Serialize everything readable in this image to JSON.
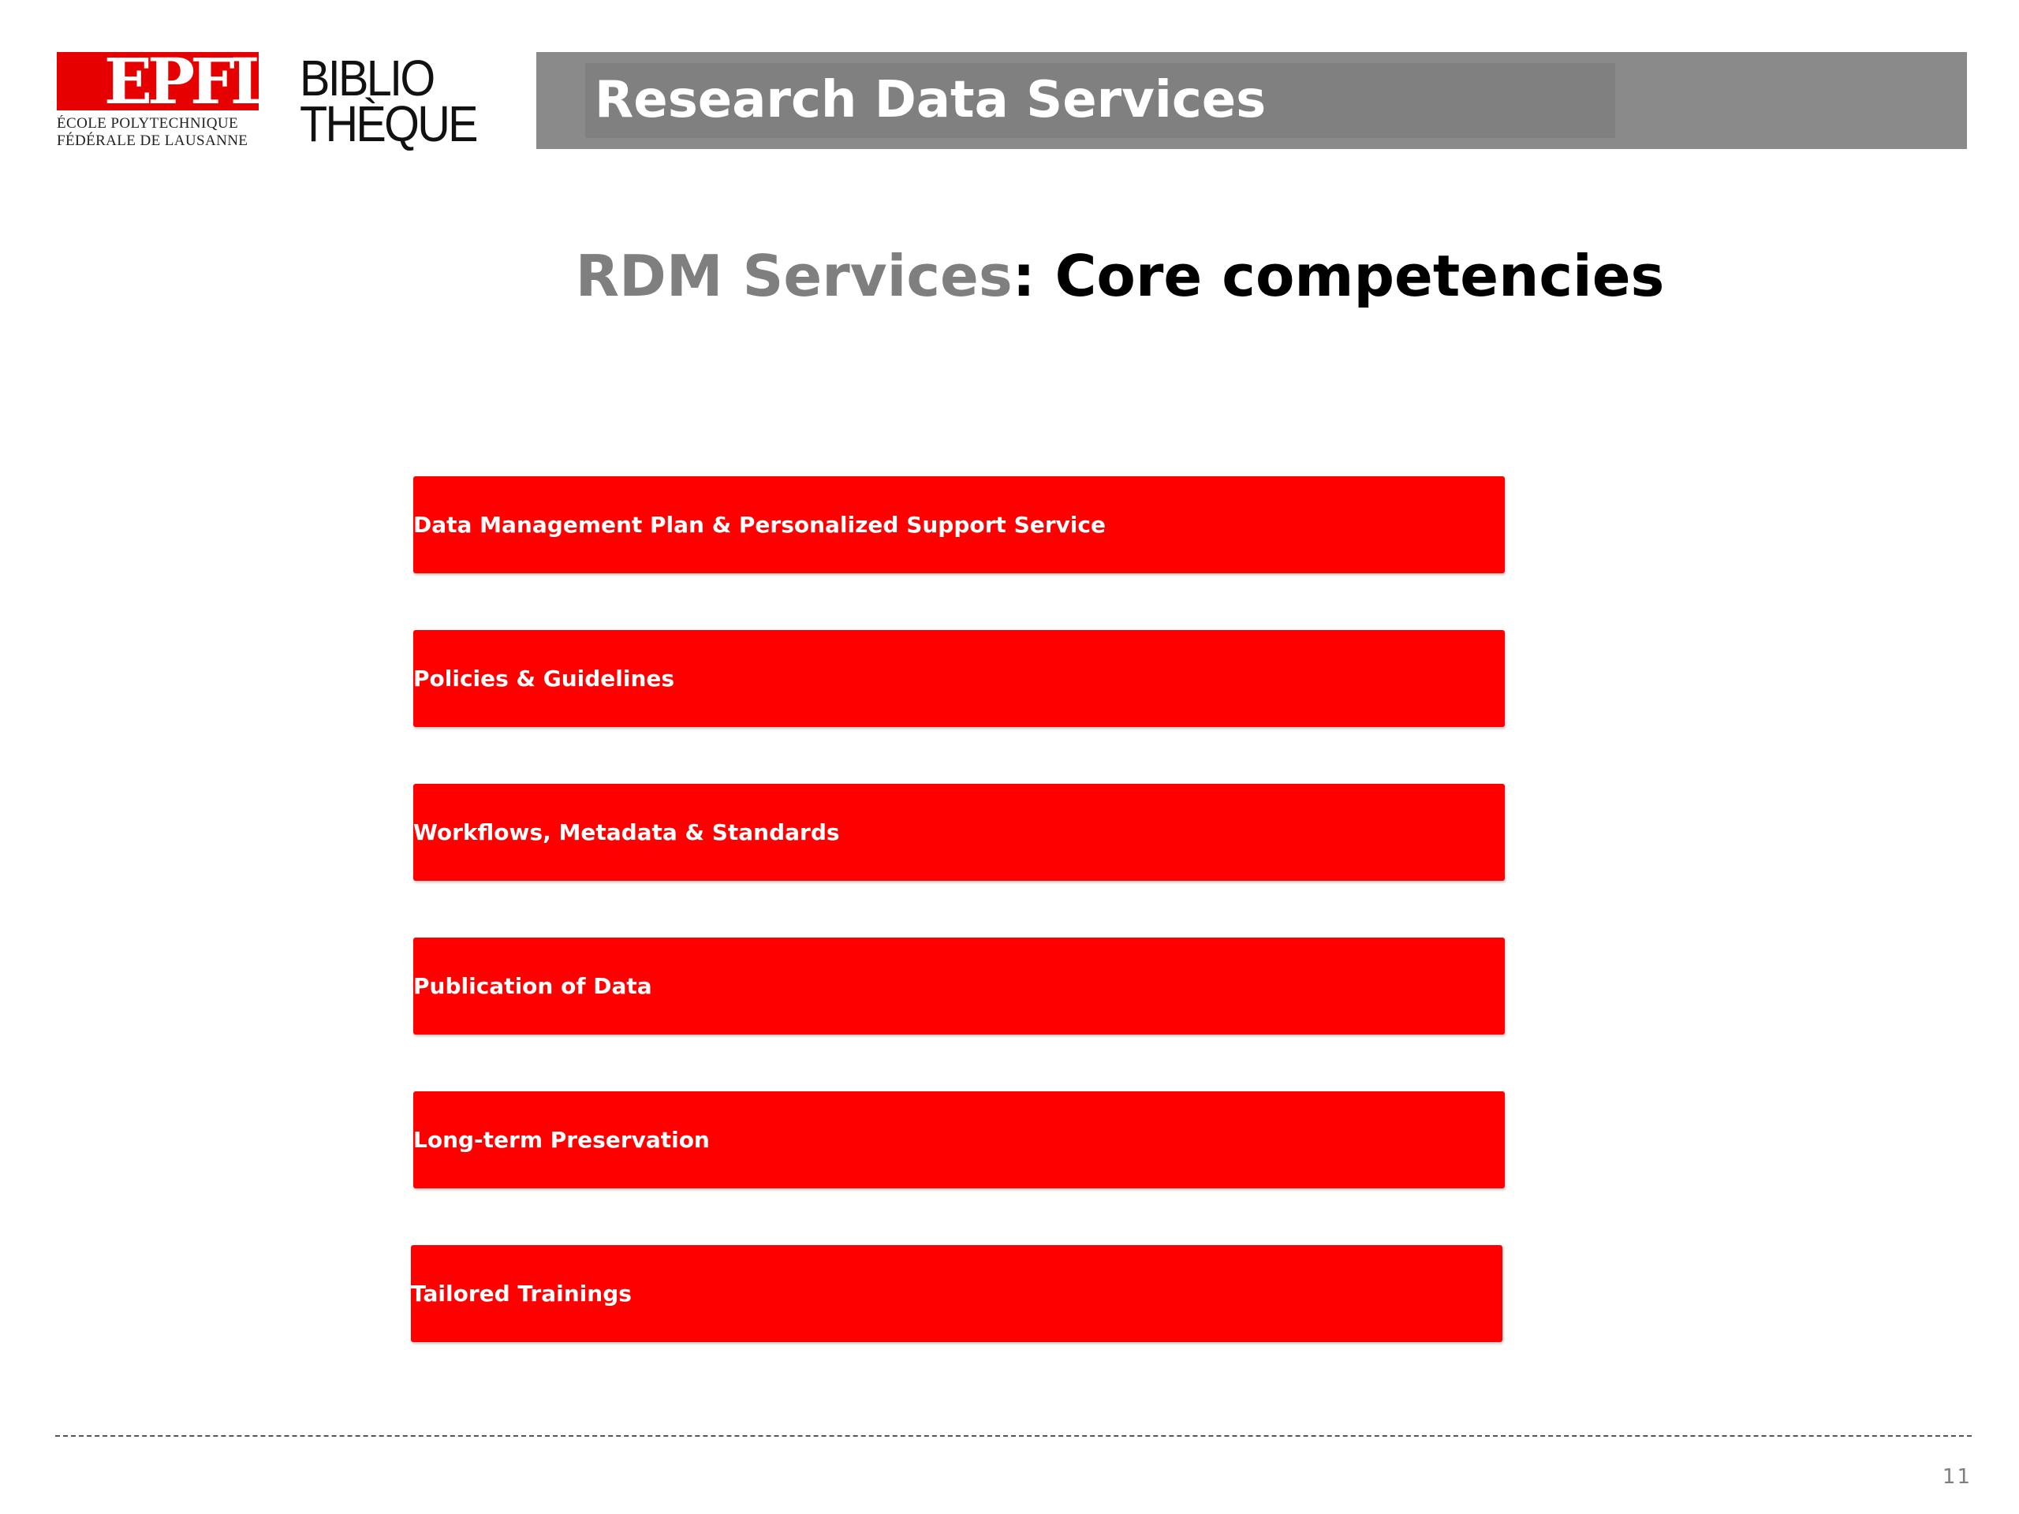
{
  "header": {
    "epfl_logo": {
      "mark": "EPFL",
      "line1": "ÉCOLE POLYTECHNIQUE",
      "line2": "FÉDÉRALE DE LAUSANNE"
    },
    "bibliotheque_logo": {
      "line1": "BIBLIO",
      "line2": "THÈQUE"
    },
    "banner_title": "Research Data Services",
    "colors": {
      "epfl_red": "#e60000",
      "banner_grey": "#8a8a8a"
    }
  },
  "slide": {
    "title_part1": "RDM Services",
    "title_part2": ": Core competencies",
    "title_part1_color": "#7f7f7f",
    "title_part2_color": "#000000"
  },
  "competencies": [
    {
      "label": "Data Management Plan & Personalized Support Service"
    },
    {
      "label": "Policies & Guidelines"
    },
    {
      "label": "Workflows, Metadata & Standards"
    },
    {
      "label": "Publication of Data"
    },
    {
      "label": "Long-term Preservation"
    },
    {
      "label": "Tailored Trainings"
    }
  ],
  "competency_color": "#ff0000",
  "footer": {
    "page_number": "11"
  }
}
